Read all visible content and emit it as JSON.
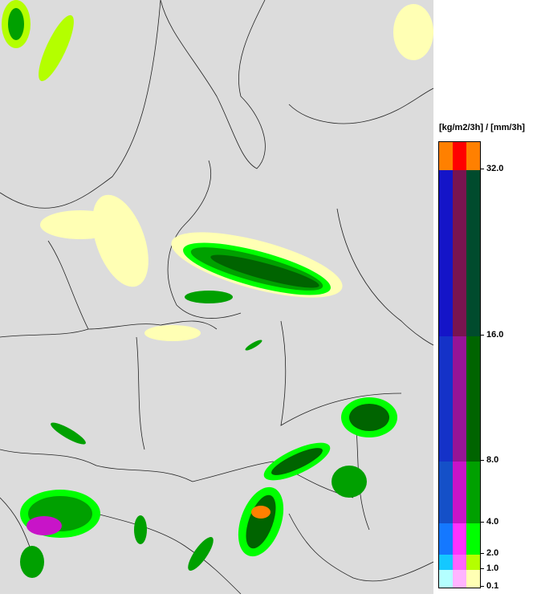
{
  "legend": {
    "title": "[kg/m2/3h] / [mm/3h]",
    "ticks": [
      "32.0",
      "16.0",
      "8.0",
      "4.0",
      "2.0",
      "1.0",
      "0.1"
    ],
    "bands": [
      {
        "range": ">32",
        "colors": [
          "#ff8000",
          "#ff0000",
          "#ff8000"
        ]
      },
      {
        "range": "16-32",
        "colors": [
          "#1414c8",
          "#781450",
          "#004b2d"
        ]
      },
      {
        "range": "8-16",
        "colors": [
          "#1432c8",
          "#961496",
          "#006400"
        ]
      },
      {
        "range": "4-8",
        "colors": [
          "#1450c8",
          "#c814c8",
          "#00a000"
        ]
      },
      {
        "range": "2-4",
        "colors": [
          "#1478ff",
          "#ff32ff",
          "#00ff00"
        ]
      },
      {
        "range": "1-2",
        "colors": [
          "#14c8ff",
          "#ff64ff",
          "#b4ff00"
        ]
      },
      {
        "range": "0.1-1",
        "colors": [
          "#b4ffff",
          "#ffb4ff",
          "#ffffb4"
        ]
      }
    ]
  },
  "colors": {
    "background": "#dcdcdc",
    "borders": "#000000"
  }
}
